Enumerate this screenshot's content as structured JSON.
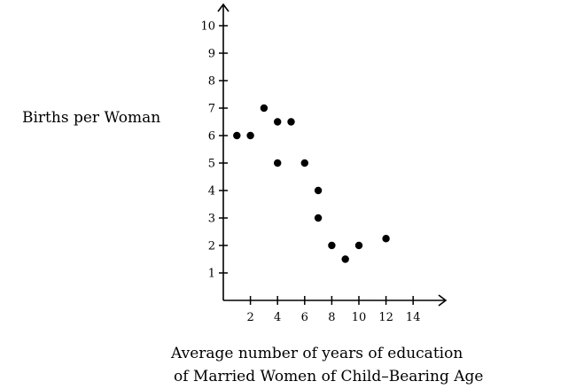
{
  "chart_data": {
    "type": "scatter",
    "title": "",
    "ylabel": "Births per Woman",
    "xlabel_lines": [
      "Average number of years of education",
      "of Married Women of Child–Bearing Age"
    ],
    "xlim": [
      0,
      16
    ],
    "ylim": [
      0,
      11
    ],
    "xticks": [
      2,
      4,
      6,
      8,
      10,
      12,
      14
    ],
    "yticks": [
      1,
      2,
      3,
      4,
      5,
      6,
      7,
      8,
      9,
      10
    ],
    "grid": false,
    "legend": "none",
    "points": [
      {
        "x": 1,
        "y": 6
      },
      {
        "x": 2,
        "y": 6
      },
      {
        "x": 3,
        "y": 7
      },
      {
        "x": 4,
        "y": 6.5
      },
      {
        "x": 5,
        "y": 6.5
      },
      {
        "x": 4,
        "y": 5
      },
      {
        "x": 6,
        "y": 5
      },
      {
        "x": 7,
        "y": 4
      },
      {
        "x": 7,
        "y": 3
      },
      {
        "x": 8,
        "y": 2
      },
      {
        "x": 9,
        "y": 1.5
      },
      {
        "x": 10,
        "y": 2
      },
      {
        "x": 12,
        "y": 2.25
      }
    ],
    "colors": {
      "axis": "#000000",
      "marker": "#000000"
    }
  }
}
